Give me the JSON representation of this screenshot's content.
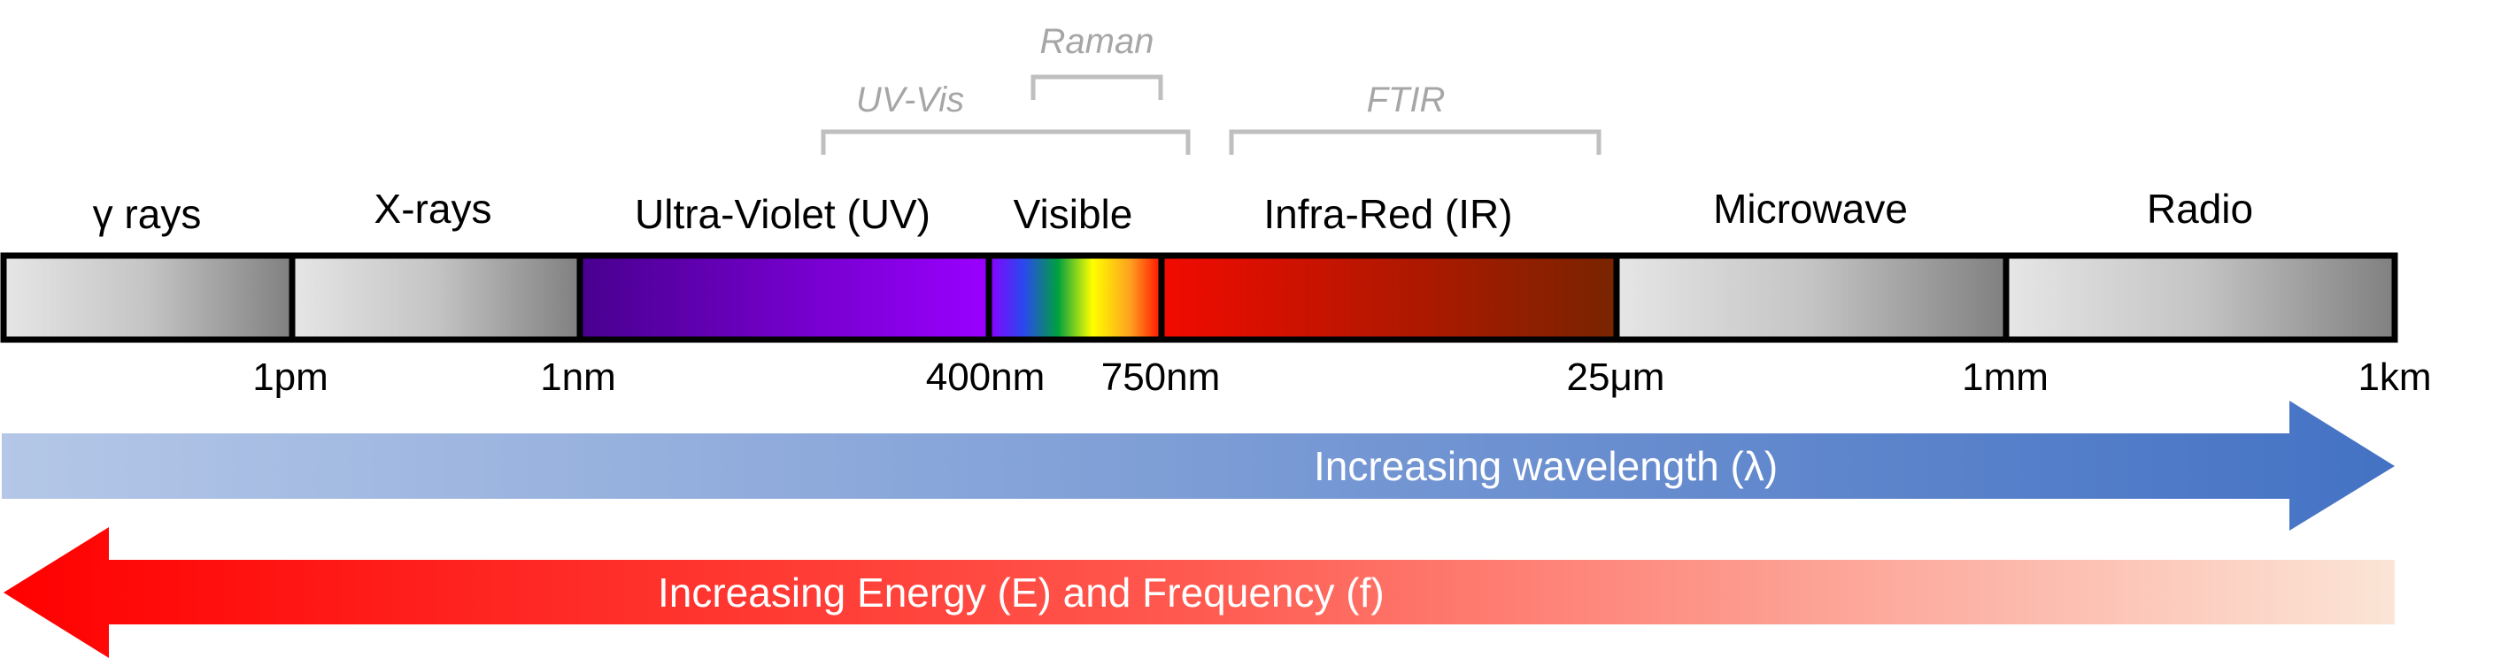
{
  "techniques": {
    "raman": "Raman",
    "uv_vis": "UV-Vis",
    "ftir": "FTIR"
  },
  "bands": {
    "gamma": "γ rays",
    "xray": "X-rays",
    "uv": "Ultra-Violet (UV)",
    "visible": "Visible",
    "ir": "Infra-Red (IR)",
    "microwave": "Microwave",
    "radio": "Radio"
  },
  "ticks": [
    "1pm",
    "1nm",
    "400nm",
    "750nm",
    "25μm",
    "1mm",
    "1km"
  ],
  "arrows": {
    "wavelength": "Increasing wavelength (λ)",
    "energy": "Increasing Energy (E) and Frequency (f)"
  },
  "colors": {
    "wavelength_arrow_start": "#b4c7e7",
    "wavelength_arrow_end": "#4472c4",
    "energy_arrow_start": "#ff0000",
    "energy_arrow_end": "#fbe5d6",
    "bracket": "#bfbfbf"
  }
}
